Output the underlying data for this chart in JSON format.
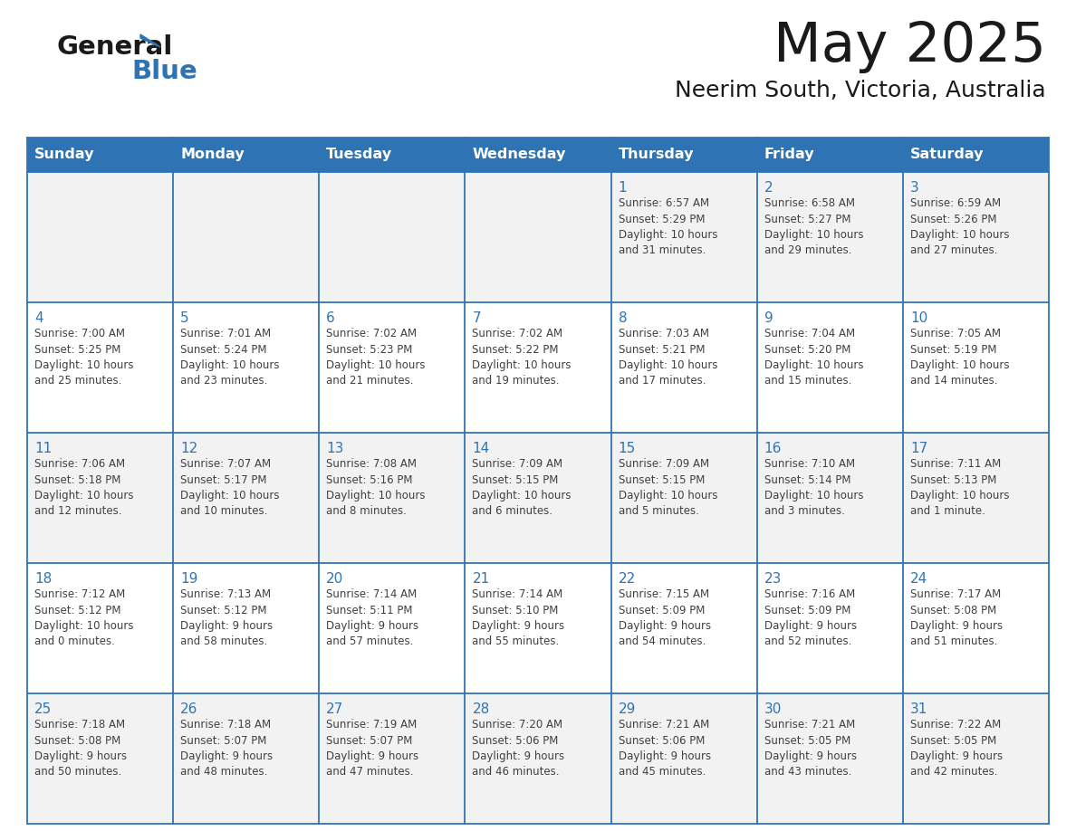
{
  "title": "May 2025",
  "subtitle": "Neerim South, Victoria, Australia",
  "header_bg": "#2E74B5",
  "header_text_color": "#FFFFFF",
  "day_names": [
    "Sunday",
    "Monday",
    "Tuesday",
    "Wednesday",
    "Thursday",
    "Friday",
    "Saturday"
  ],
  "row_bg_odd": "#F2F2F2",
  "row_bg_even": "#FFFFFF",
  "cell_border_color": "#2E74B5",
  "day_number_color": "#2E74B5",
  "info_text_color": "#404040",
  "logo_general_color": "#1a1a1a",
  "logo_blue_color": "#2E74B5",
  "title_color": "#1a1a1a",
  "subtitle_color": "#1a1a1a",
  "days": [
    {
      "day": 1,
      "col": 4,
      "row": 0,
      "sunrise": "6:57 AM",
      "sunset": "5:29 PM",
      "daylight": "10 hours and 31 minutes."
    },
    {
      "day": 2,
      "col": 5,
      "row": 0,
      "sunrise": "6:58 AM",
      "sunset": "5:27 PM",
      "daylight": "10 hours and 29 minutes."
    },
    {
      "day": 3,
      "col": 6,
      "row": 0,
      "sunrise": "6:59 AM",
      "sunset": "5:26 PM",
      "daylight": "10 hours and 27 minutes."
    },
    {
      "day": 4,
      "col": 0,
      "row": 1,
      "sunrise": "7:00 AM",
      "sunset": "5:25 PM",
      "daylight": "10 hours and 25 minutes."
    },
    {
      "day": 5,
      "col": 1,
      "row": 1,
      "sunrise": "7:01 AM",
      "sunset": "5:24 PM",
      "daylight": "10 hours and 23 minutes."
    },
    {
      "day": 6,
      "col": 2,
      "row": 1,
      "sunrise": "7:02 AM",
      "sunset": "5:23 PM",
      "daylight": "10 hours and 21 minutes."
    },
    {
      "day": 7,
      "col": 3,
      "row": 1,
      "sunrise": "7:02 AM",
      "sunset": "5:22 PM",
      "daylight": "10 hours and 19 minutes."
    },
    {
      "day": 8,
      "col": 4,
      "row": 1,
      "sunrise": "7:03 AM",
      "sunset": "5:21 PM",
      "daylight": "10 hours and 17 minutes."
    },
    {
      "day": 9,
      "col": 5,
      "row": 1,
      "sunrise": "7:04 AM",
      "sunset": "5:20 PM",
      "daylight": "10 hours and 15 minutes."
    },
    {
      "day": 10,
      "col": 6,
      "row": 1,
      "sunrise": "7:05 AM",
      "sunset": "5:19 PM",
      "daylight": "10 hours and 14 minutes."
    },
    {
      "day": 11,
      "col": 0,
      "row": 2,
      "sunrise": "7:06 AM",
      "sunset": "5:18 PM",
      "daylight": "10 hours and 12 minutes."
    },
    {
      "day": 12,
      "col": 1,
      "row": 2,
      "sunrise": "7:07 AM",
      "sunset": "5:17 PM",
      "daylight": "10 hours and 10 minutes."
    },
    {
      "day": 13,
      "col": 2,
      "row": 2,
      "sunrise": "7:08 AM",
      "sunset": "5:16 PM",
      "daylight": "10 hours and 8 minutes."
    },
    {
      "day": 14,
      "col": 3,
      "row": 2,
      "sunrise": "7:09 AM",
      "sunset": "5:15 PM",
      "daylight": "10 hours and 6 minutes."
    },
    {
      "day": 15,
      "col": 4,
      "row": 2,
      "sunrise": "7:09 AM",
      "sunset": "5:15 PM",
      "daylight": "10 hours and 5 minutes."
    },
    {
      "day": 16,
      "col": 5,
      "row": 2,
      "sunrise": "7:10 AM",
      "sunset": "5:14 PM",
      "daylight": "10 hours and 3 minutes."
    },
    {
      "day": 17,
      "col": 6,
      "row": 2,
      "sunrise": "7:11 AM",
      "sunset": "5:13 PM",
      "daylight": "10 hours and 1 minute."
    },
    {
      "day": 18,
      "col": 0,
      "row": 3,
      "sunrise": "7:12 AM",
      "sunset": "5:12 PM",
      "daylight": "10 hours and 0 minutes."
    },
    {
      "day": 19,
      "col": 1,
      "row": 3,
      "sunrise": "7:13 AM",
      "sunset": "5:12 PM",
      "daylight": "9 hours and 58 minutes."
    },
    {
      "day": 20,
      "col": 2,
      "row": 3,
      "sunrise": "7:14 AM",
      "sunset": "5:11 PM",
      "daylight": "9 hours and 57 minutes."
    },
    {
      "day": 21,
      "col": 3,
      "row": 3,
      "sunrise": "7:14 AM",
      "sunset": "5:10 PM",
      "daylight": "9 hours and 55 minutes."
    },
    {
      "day": 22,
      "col": 4,
      "row": 3,
      "sunrise": "7:15 AM",
      "sunset": "5:09 PM",
      "daylight": "9 hours and 54 minutes."
    },
    {
      "day": 23,
      "col": 5,
      "row": 3,
      "sunrise": "7:16 AM",
      "sunset": "5:09 PM",
      "daylight": "9 hours and 52 minutes."
    },
    {
      "day": 24,
      "col": 6,
      "row": 3,
      "sunrise": "7:17 AM",
      "sunset": "5:08 PM",
      "daylight": "9 hours and 51 minutes."
    },
    {
      "day": 25,
      "col": 0,
      "row": 4,
      "sunrise": "7:18 AM",
      "sunset": "5:08 PM",
      "daylight": "9 hours and 50 minutes."
    },
    {
      "day": 26,
      "col": 1,
      "row": 4,
      "sunrise": "7:18 AM",
      "sunset": "5:07 PM",
      "daylight": "9 hours and 48 minutes."
    },
    {
      "day": 27,
      "col": 2,
      "row": 4,
      "sunrise": "7:19 AM",
      "sunset": "5:07 PM",
      "daylight": "9 hours and 47 minutes."
    },
    {
      "day": 28,
      "col": 3,
      "row": 4,
      "sunrise": "7:20 AM",
      "sunset": "5:06 PM",
      "daylight": "9 hours and 46 minutes."
    },
    {
      "day": 29,
      "col": 4,
      "row": 4,
      "sunrise": "7:21 AM",
      "sunset": "5:06 PM",
      "daylight": "9 hours and 45 minutes."
    },
    {
      "day": 30,
      "col": 5,
      "row": 4,
      "sunrise": "7:21 AM",
      "sunset": "5:05 PM",
      "daylight": "9 hours and 43 minutes."
    },
    {
      "day": 31,
      "col": 6,
      "row": 4,
      "sunrise": "7:22 AM",
      "sunset": "5:05 PM",
      "daylight": "9 hours and 42 minutes."
    }
  ]
}
